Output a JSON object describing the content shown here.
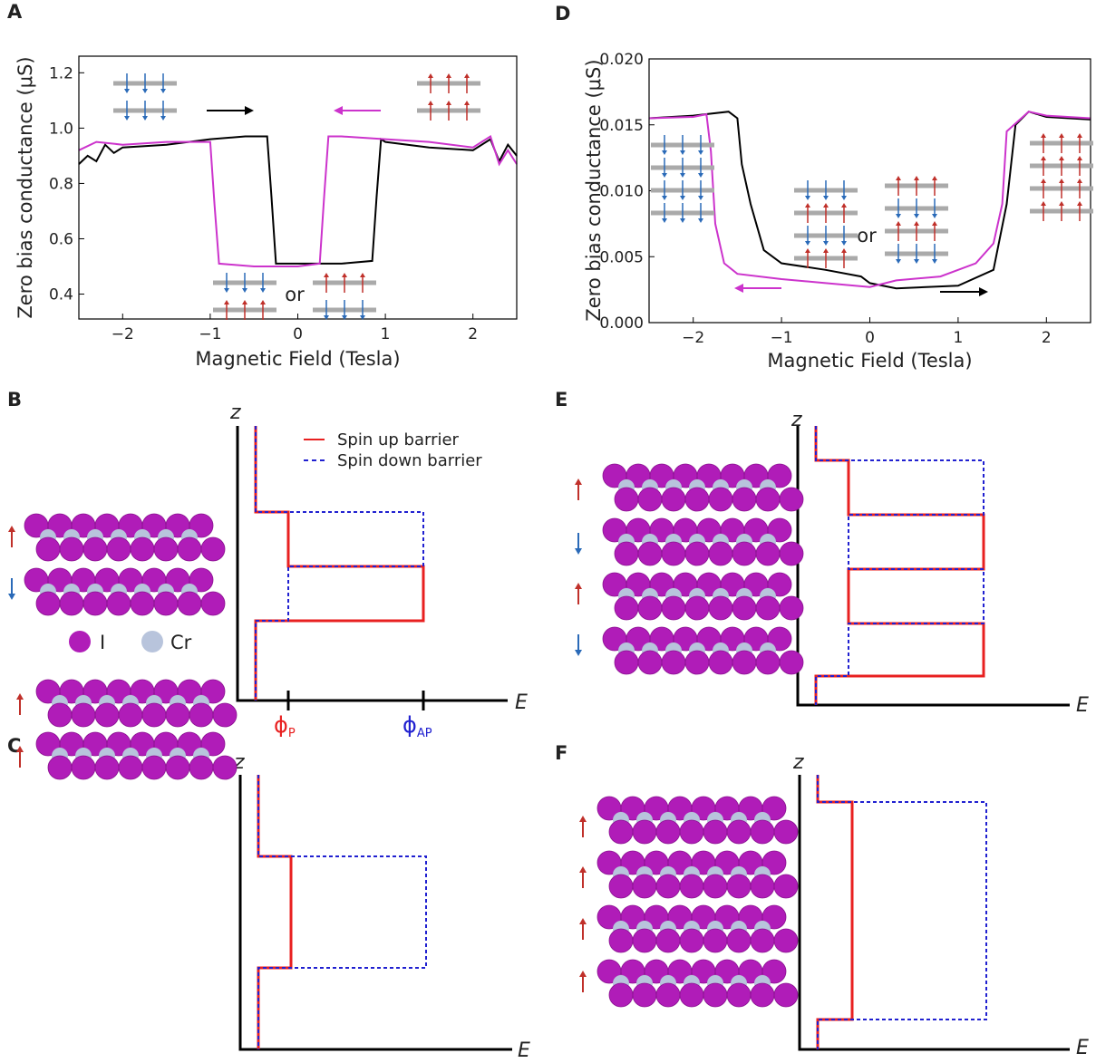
{
  "chart_data": [
    {
      "type": "line",
      "panel": "A",
      "xlabel": "Magnetic Field (Tesla)",
      "ylabel": "Zero bias conductance (μS)",
      "xlim": [
        -2.5,
        2.5
      ],
      "ylim": [
        0.31,
        1.26
      ],
      "xticks": [
        {
          "value": -2,
          "label": "−2"
        },
        {
          "value": -1,
          "label": "−1"
        },
        0,
        1,
        2
      ],
      "yticks": [
        0.4,
        0.6,
        0.8,
        {
          "value": 1,
          "label": "1.0"
        },
        1.2
      ],
      "annotations": [
        "or"
      ],
      "series": [
        {
          "color": "#000000",
          "x": [
            -2.5,
            -2.4,
            -2.3,
            -2.2,
            -2.1,
            -2.0,
            -1.5,
            -1.0,
            -0.6,
            -0.35,
            -0.3,
            -0.25,
            0,
            0.5,
            0.85,
            0.9,
            0.95,
            1.0,
            1.5,
            2.0,
            2.2,
            2.3,
            2.4,
            2.5
          ],
          "values": [
            0.87,
            0.9,
            0.88,
            0.94,
            0.91,
            0.93,
            0.94,
            0.96,
            0.97,
            0.97,
            0.75,
            0.51,
            0.51,
            0.51,
            0.52,
            0.75,
            0.96,
            0.95,
            0.93,
            0.92,
            0.96,
            0.88,
            0.94,
            0.9
          ]
        },
        {
          "color": "#cc33cc",
          "x": [
            -2.5,
            -2.3,
            -2.0,
            -1.5,
            -1.0,
            -0.95,
            -0.9,
            -0.5,
            0,
            0.25,
            0.3,
            0.35,
            0.5,
            1.0,
            1.5,
            2.0,
            2.2,
            2.3,
            2.4,
            2.5
          ],
          "values": [
            0.92,
            0.95,
            0.94,
            0.95,
            0.95,
            0.72,
            0.51,
            0.5,
            0.5,
            0.51,
            0.75,
            0.97,
            0.97,
            0.96,
            0.95,
            0.93,
            0.97,
            0.87,
            0.92,
            0.87
          ]
        }
      ]
    },
    {
      "type": "line",
      "panel": "D",
      "xlabel": "Magnetic Field (Tesla)",
      "ylabel": "Zero bias conductance (μS)",
      "xlim": [
        -2.5,
        2.5
      ],
      "ylim": [
        0,
        0.02
      ],
      "xticks": [
        {
          "value": -2,
          "label": "−2"
        },
        {
          "value": -1,
          "label": "−1"
        },
        0,
        1,
        2
      ],
      "yticks": [
        {
          "value": 0,
          "label": "0.000"
        },
        {
          "value": 0.005,
          "label": "0.005"
        },
        {
          "value": 0.01,
          "label": "0.010"
        },
        {
          "value": 0.015,
          "label": "0.015"
        },
        {
          "value": 0.02,
          "label": "0.020"
        }
      ],
      "annotations": [
        "or"
      ],
      "series": [
        {
          "color": "#000000",
          "x": [
            -2.5,
            -2.0,
            -1.6,
            -1.5,
            -1.45,
            -1.35,
            -1.2,
            -1.0,
            -0.5,
            -0.1,
            0,
            0.3,
            1.0,
            1.4,
            1.55,
            1.65,
            1.8,
            2.0,
            2.5
          ],
          "values": [
            0.0155,
            0.0157,
            0.016,
            0.0155,
            0.012,
            0.009,
            0.0055,
            0.0045,
            0.004,
            0.0035,
            0.003,
            0.0026,
            0.0028,
            0.004,
            0.009,
            0.015,
            0.016,
            0.0156,
            0.0154
          ]
        },
        {
          "color": "#cc33cc",
          "x": [
            -2.5,
            -2.0,
            -1.85,
            -1.8,
            -1.75,
            -1.65,
            -1.5,
            -1.0,
            -0.5,
            0,
            0.3,
            0.8,
            1.2,
            1.4,
            1.5,
            1.55,
            1.8,
            2.0,
            2.5
          ],
          "values": [
            0.0155,
            0.0156,
            0.0158,
            0.013,
            0.0075,
            0.0045,
            0.0037,
            0.0033,
            0.003,
            0.0027,
            0.0032,
            0.0035,
            0.0045,
            0.006,
            0.009,
            0.0145,
            0.016,
            0.0157,
            0.0155
          ]
        }
      ]
    }
  ],
  "diagram_panels": [
    "B",
    "C",
    "E",
    "F"
  ],
  "legend": {
    "spin_up": "Spin up barrier",
    "spin_down": "Spin down barrier"
  },
  "atoms": [
    "I",
    "Cr"
  ],
  "axis_z": "z",
  "axis_e": "E",
  "phi_p": {
    "symbol": "ϕ",
    "sub": "P"
  },
  "phi_ap": {
    "symbol": "ϕ",
    "sub": "AP"
  }
}
